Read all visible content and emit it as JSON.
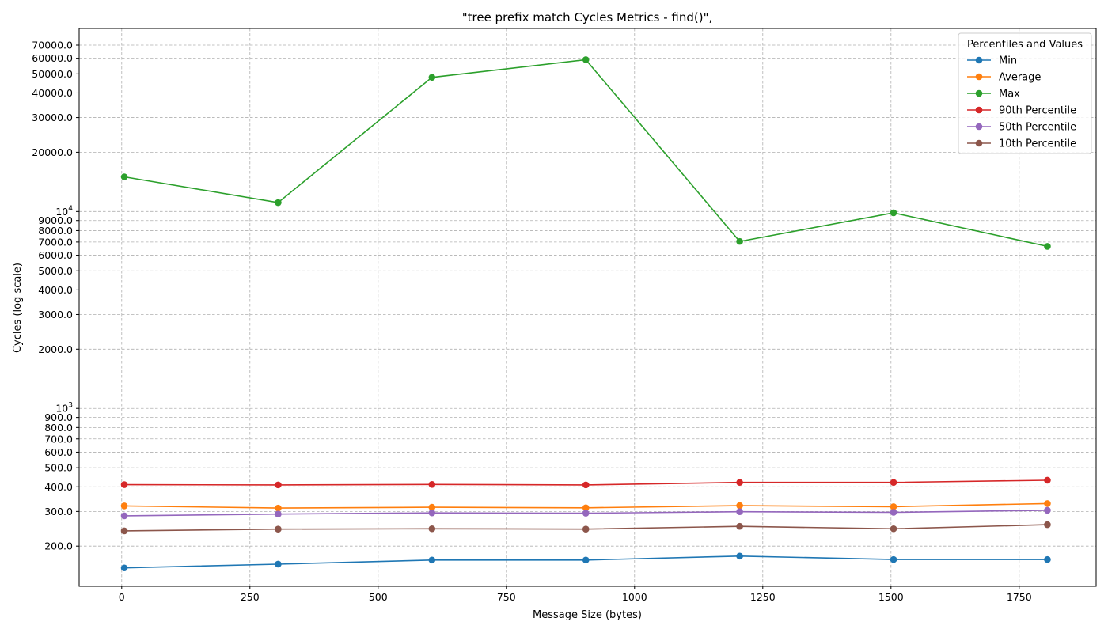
{
  "chart_data": {
    "type": "line",
    "title": "\"tree prefix match Cycles Metrics - find()\",",
    "xlabel": "Message Size (bytes)",
    "ylabel": "Cycles (log scale)",
    "yscale": "log",
    "xlim": [
      -83,
      1900
    ],
    "ylim": [
      125,
      85000
    ],
    "x_ticks": [
      0,
      250,
      500,
      750,
      1000,
      1250,
      1500,
      1750
    ],
    "y_ticks": [
      {
        "value": 200,
        "label": "200.0"
      },
      {
        "value": 300,
        "label": "300.0"
      },
      {
        "value": 400,
        "label": "400.0"
      },
      {
        "value": 500,
        "label": "500.0"
      },
      {
        "value": 600,
        "label": "600.0"
      },
      {
        "value": 700,
        "label": "700.0"
      },
      {
        "value": 800,
        "label": "800.0"
      },
      {
        "value": 900,
        "label": "900.0"
      },
      {
        "value": 1000,
        "label": "10^3"
      },
      {
        "value": 2000,
        "label": "2000.0"
      },
      {
        "value": 3000,
        "label": "3000.0"
      },
      {
        "value": 4000,
        "label": "4000.0"
      },
      {
        "value": 5000,
        "label": "5000.0"
      },
      {
        "value": 6000,
        "label": "6000.0"
      },
      {
        "value": 7000,
        "label": "7000.0"
      },
      {
        "value": 8000,
        "label": "8000.0"
      },
      {
        "value": 9000,
        "label": "9000.0"
      },
      {
        "value": 10000,
        "label": "10^4"
      },
      {
        "value": 20000,
        "label": "20000.0"
      },
      {
        "value": 30000,
        "label": "30000.0"
      },
      {
        "value": 40000,
        "label": "40000.0"
      },
      {
        "value": 50000,
        "label": "50000.0"
      },
      {
        "value": 60000,
        "label": "60000.0"
      },
      {
        "value": 70000,
        "label": "70000.0"
      }
    ],
    "grid": true,
    "legend": {
      "title": "Percentiles and Values",
      "placement": "upper right"
    },
    "x": [
      5,
      305,
      605,
      905,
      1205,
      1505,
      1805
    ],
    "series": [
      {
        "name": "Min",
        "color": "#1f77b4",
        "values": [
          155,
          162,
          170,
          170,
          178,
          171,
          171
        ]
      },
      {
        "name": "Average",
        "color": "#ff7f0e",
        "values": [
          320,
          312,
          315,
          313,
          321,
          317,
          329
        ]
      },
      {
        "name": "Max",
        "color": "#2ca02c",
        "values": [
          15000,
          11100,
          48000,
          59000,
          7050,
          9850,
          6650
        ]
      },
      {
        "name": "90th Percentile",
        "color": "#d62728",
        "values": [
          410,
          409,
          411,
          409,
          421,
          421,
          432
        ]
      },
      {
        "name": "50th Percentile",
        "color": "#9467bd",
        "values": [
          285,
          291,
          295,
          294,
          299,
          297,
          304
        ]
      },
      {
        "name": "10th Percentile",
        "color": "#8c564b",
        "values": [
          239,
          244,
          245,
          244,
          252,
          245,
          257
        ]
      }
    ]
  }
}
